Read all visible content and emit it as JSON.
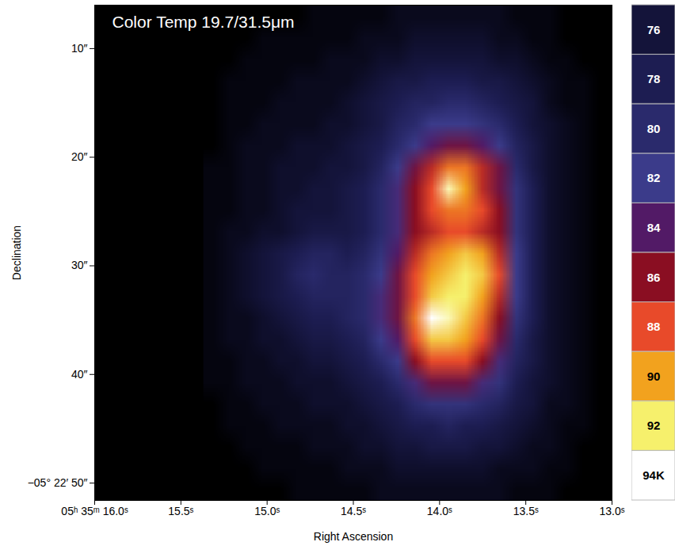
{
  "chart_data": {
    "type": "heatmap",
    "title": "Color Temp 19.7/31.5μm",
    "x_label": "Right Ascension",
    "y_label": "Declination",
    "xlim": [
      16.0,
      13.0
    ],
    "xticks": [
      {
        "value": 16.0,
        "label": "05ʰ 35ᵐ 16.0ˢ"
      },
      {
        "value": 15.5,
        "label": "15.5ˢ"
      },
      {
        "value": 15.0,
        "label": "15.0ˢ"
      },
      {
        "value": 14.5,
        "label": "14.5ˢ"
      },
      {
        "value": 14.0,
        "label": "14.0ˢ"
      },
      {
        "value": 13.5,
        "label": "13.5ˢ"
      },
      {
        "value": 13.0,
        "label": "13.0ˢ"
      }
    ],
    "ylim": [
      51.6,
      6
    ],
    "yticks": [
      {
        "value": 10,
        "label": "10″"
      },
      {
        "value": 20,
        "label": "20″"
      },
      {
        "value": 30,
        "label": "30″"
      },
      {
        "value": 40,
        "label": "40″"
      },
      {
        "value": 50,
        "label": "−05° 22′ 50″"
      }
    ],
    "cells": {
      "x": [
        15.37,
        13.02
      ],
      "y": [
        6,
        51.6
      ],
      "values": [
        [
          72,
          72,
          72,
          72,
          72,
          72,
          73,
          73,
          73,
          73,
          73,
          74,
          74,
          74,
          74,
          74,
          74,
          74,
          73,
          73,
          73,
          72,
          72,
          72
        ],
        [
          72,
          72,
          72,
          73,
          73,
          73,
          73,
          73,
          73,
          74,
          74,
          74,
          75,
          75,
          75,
          75,
          75,
          74,
          74,
          73,
          73,
          72,
          72,
          72
        ],
        [
          72,
          72,
          73,
          73,
          73,
          73,
          73,
          74,
          74,
          74,
          75,
          75,
          76,
          76,
          76,
          76,
          76,
          75,
          75,
          74,
          73,
          73,
          72,
          72
        ],
        [
          72,
          73,
          73,
          73,
          73,
          74,
          74,
          74,
          74,
          75,
          76,
          77,
          77,
          78,
          78,
          78,
          77,
          77,
          76,
          75,
          74,
          73,
          73,
          72
        ],
        [
          72,
          73,
          73,
          73,
          74,
          74,
          74,
          74,
          75,
          76,
          77,
          78,
          79,
          79,
          80,
          80,
          79,
          78,
          77,
          76,
          74,
          73,
          73,
          72
        ],
        [
          72,
          73,
          73,
          74,
          74,
          74,
          74,
          75,
          75,
          76,
          77,
          79,
          80,
          82,
          82,
          82,
          81,
          80,
          78,
          76,
          75,
          74,
          73,
          72
        ],
        [
          72,
          73,
          74,
          74,
          74,
          75,
          75,
          75,
          76,
          77,
          78,
          80,
          82,
          84,
          85,
          85,
          84,
          82,
          79,
          77,
          75,
          74,
          73,
          72
        ],
        [
          73,
          73,
          74,
          74,
          75,
          75,
          75,
          76,
          76,
          77,
          79,
          82,
          85,
          87,
          89,
          89,
          87,
          85,
          80,
          77,
          75,
          74,
          73,
          72
        ],
        [
          73,
          73,
          74,
          74,
          75,
          75,
          76,
          76,
          77,
          78,
          80,
          83,
          86,
          88,
          93,
          90,
          87,
          85,
          81,
          78,
          75,
          74,
          73,
          72
        ],
        [
          73,
          73,
          74,
          74,
          75,
          76,
          76,
          76,
          77,
          78,
          80,
          83,
          86,
          88,
          89,
          89,
          88,
          86,
          81,
          78,
          75,
          74,
          73,
          72
        ],
        [
          73,
          74,
          74,
          75,
          75,
          76,
          77,
          77,
          77,
          78,
          80,
          83,
          86,
          87,
          88,
          88,
          87,
          86,
          81,
          78,
          75,
          74,
          73,
          72
        ],
        [
          73,
          74,
          75,
          76,
          77,
          78,
          79,
          79,
          78,
          79,
          81,
          84,
          87,
          89,
          90,
          91,
          90,
          87,
          82,
          78,
          75,
          74,
          73,
          72
        ],
        [
          73,
          74,
          75,
          76,
          77,
          79,
          80,
          79,
          79,
          80,
          82,
          85,
          88,
          90,
          91,
          92,
          91,
          88,
          82,
          78,
          75,
          74,
          73,
          72
        ],
        [
          73,
          74,
          75,
          76,
          77,
          78,
          79,
          79,
          79,
          80,
          83,
          85,
          88,
          91,
          92,
          92,
          90,
          87,
          82,
          78,
          75,
          74,
          73,
          72
        ],
        [
          73,
          74,
          74,
          75,
          76,
          77,
          78,
          78,
          79,
          80,
          83,
          85,
          89,
          94,
          93,
          91,
          89,
          86,
          81,
          78,
          75,
          74,
          73,
          72
        ],
        [
          73,
          74,
          74,
          75,
          75,
          76,
          77,
          77,
          78,
          79,
          82,
          84,
          88,
          91,
          91,
          90,
          88,
          85,
          80,
          77,
          75,
          74,
          73,
          72
        ],
        [
          73,
          73,
          74,
          74,
          75,
          75,
          76,
          76,
          77,
          78,
          80,
          82,
          86,
          88,
          88,
          88,
          86,
          83,
          79,
          77,
          75,
          74,
          73,
          72
        ],
        [
          73,
          73,
          74,
          74,
          74,
          75,
          75,
          75,
          76,
          77,
          78,
          80,
          83,
          85,
          85,
          85,
          83,
          81,
          78,
          76,
          75,
          74,
          73,
          72
        ],
        [
          72,
          73,
          73,
          74,
          74,
          74,
          75,
          75,
          75,
          76,
          77,
          78,
          80,
          81,
          81,
          81,
          80,
          79,
          77,
          76,
          74,
          74,
          73,
          72
        ],
        [
          72,
          73,
          73,
          73,
          74,
          74,
          74,
          74,
          75,
          75,
          76,
          77,
          78,
          78,
          79,
          78,
          78,
          77,
          76,
          75,
          74,
          73,
          73,
          72
        ],
        [
          72,
          72,
          73,
          73,
          73,
          73,
          74,
          74,
          74,
          75,
          75,
          76,
          76,
          77,
          77,
          77,
          76,
          76,
          75,
          74,
          74,
          73,
          72,
          72
        ],
        [
          72,
          72,
          72,
          73,
          73,
          73,
          73,
          73,
          74,
          74,
          74,
          75,
          75,
          75,
          75,
          75,
          75,
          74,
          74,
          74,
          73,
          73,
          72,
          72
        ],
        [
          72,
          72,
          72,
          72,
          72,
          73,
          73,
          73,
          73,
          73,
          74,
          74,
          74,
          74,
          74,
          74,
          74,
          74,
          73,
          73,
          73,
          72,
          72,
          72
        ]
      ]
    },
    "colorbar": {
      "range": [
        75,
        95
      ],
      "ticks": [
        76,
        78,
        80,
        82,
        84,
        86,
        88,
        90,
        92,
        {
          "value": 94,
          "label": "94K"
        }
      ]
    }
  }
}
